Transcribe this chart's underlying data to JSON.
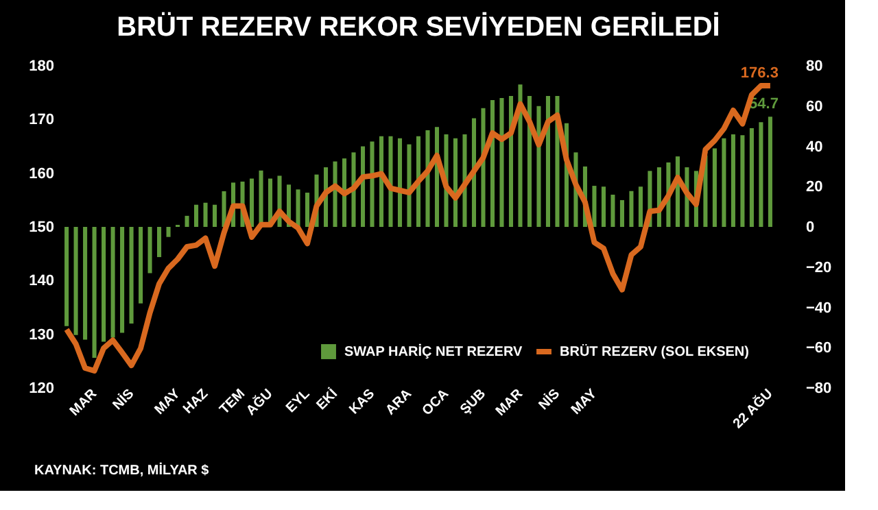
{
  "chart_data": {
    "type": "bar",
    "title": "BRÜT REZERV REKOR SEVİYEDEN GERİLEDİ",
    "categories": [
      null,
      null,
      null,
      "MAR",
      null,
      null,
      null,
      "NİS",
      null,
      null,
      null,
      null,
      "MAY",
      null,
      null,
      "HAZ",
      null,
      null,
      null,
      "TEM",
      null,
      null,
      "AĞU",
      null,
      null,
      null,
      "EYL",
      null,
      null,
      "EKİ",
      null,
      null,
      null,
      "KAS",
      null,
      null,
      null,
      "ARA",
      null,
      null,
      null,
      "OCA",
      null,
      null,
      null,
      "ŞUB",
      null,
      null,
      null,
      "MAR",
      null,
      null,
      null,
      "NİS",
      null,
      null,
      null,
      "MAY",
      null,
      null,
      null,
      null,
      null,
      null,
      null,
      null,
      null,
      null,
      null,
      null,
      null,
      null,
      null,
      null,
      null,
      null,
      "22 AĞU"
    ],
    "series": [
      {
        "name": "SWAP HARİÇ NET REZERV",
        "axis": "y2",
        "color": "#5f9a3c",
        "values": [
          -49.3,
          -53.7,
          -56,
          -65,
          -57,
          -55,
          -52.6,
          -48,
          -38,
          -23,
          -15,
          -5,
          1,
          5.5,
          11,
          12,
          11,
          17.7,
          22,
          22.5,
          24,
          28,
          24,
          25.4,
          21,
          18.6,
          17,
          26,
          29.6,
          32.5,
          34,
          37,
          40,
          42.4,
          45,
          45,
          44,
          41,
          45,
          48,
          49.6,
          46,
          44,
          46,
          54,
          59,
          63,
          64,
          65,
          70.7,
          65,
          60,
          65,
          65,
          51.5,
          37,
          30,
          20.4,
          20,
          16,
          13.3,
          17.8,
          20,
          27.8,
          29.6,
          32,
          35,
          29.6,
          27.8,
          35.5,
          39,
          44,
          46,
          45.5,
          49,
          52,
          54.7
        ],
        "value_labels": [
          null,
          null,
          null,
          null,
          null,
          null,
          null,
          null,
          null,
          null,
          null,
          null,
          null,
          null,
          null,
          null,
          null,
          null,
          null,
          null,
          null,
          null,
          null,
          null,
          null,
          null,
          null,
          null,
          null,
          null,
          null,
          null,
          null,
          null,
          null,
          null,
          null,
          null,
          null,
          null,
          null,
          null,
          null,
          null,
          null,
          null,
          null,
          null,
          null,
          null,
          null,
          null,
          null,
          null,
          null,
          null,
          null,
          null,
          null,
          null,
          null,
          null,
          null,
          null,
          null,
          null,
          null,
          null,
          null,
          null,
          null,
          null,
          null,
          null,
          null,
          null,
          "54.7"
        ]
      },
      {
        "name": "BRÜT REZERV (SOL EKSEN)",
        "type": "line",
        "axis": "y",
        "color": "#d9691f",
        "values": [
          130.9,
          128.2,
          123.7,
          123.2,
          127.4,
          128.9,
          126.6,
          124.2,
          127.4,
          134,
          139.4,
          142.3,
          144,
          146.3,
          146.6,
          147.9,
          142.7,
          148.9,
          153.9,
          153.9,
          148.1,
          150.4,
          150.4,
          152.9,
          151,
          149.8,
          146.9,
          153.9,
          156.4,
          157.6,
          156.2,
          157.2,
          159.3,
          159.5,
          159.9,
          157.2,
          156.8,
          156.4,
          158.5,
          160.4,
          163.3,
          157.5,
          155.4,
          157.9,
          160.4,
          162.9,
          167.5,
          166.3,
          167.5,
          172.9,
          169.6,
          165.3,
          169.6,
          170.8,
          162.5,
          157.9,
          154.6,
          147.1,
          146,
          141.3,
          138.3,
          144.8,
          146.3,
          152.9,
          153.1,
          155.8,
          159.2,
          156.3,
          154.2,
          164.4,
          166.1,
          168.3,
          171.7,
          169.2,
          174.6,
          176.3,
          176.3
        ],
        "value_labels": [
          null,
          null,
          null,
          null,
          null,
          null,
          null,
          null,
          null,
          null,
          null,
          null,
          null,
          null,
          null,
          null,
          null,
          null,
          null,
          null,
          null,
          null,
          null,
          null,
          null,
          null,
          null,
          null,
          null,
          null,
          null,
          null,
          null,
          null,
          null,
          null,
          null,
          null,
          null,
          null,
          null,
          null,
          null,
          null,
          null,
          null,
          null,
          null,
          null,
          null,
          null,
          null,
          null,
          null,
          null,
          null,
          null,
          null,
          null,
          null,
          null,
          null,
          null,
          null,
          null,
          null,
          null,
          null,
          null,
          null,
          null,
          null,
          null,
          null,
          null,
          null,
          "176.3"
        ]
      }
    ],
    "ylim": [
      120,
      180
    ],
    "yticks": [
      120,
      130,
      140,
      150,
      160,
      170,
      180
    ],
    "y2lim": [
      -80,
      80
    ],
    "y2ticks": [
      -80,
      -60,
      -40,
      -20,
      0,
      20,
      40,
      60,
      80
    ],
    "grid": false,
    "legend": "bottom right",
    "annotations": [
      "KAYNAK: TCMB, MİLYAR $"
    ]
  }
}
